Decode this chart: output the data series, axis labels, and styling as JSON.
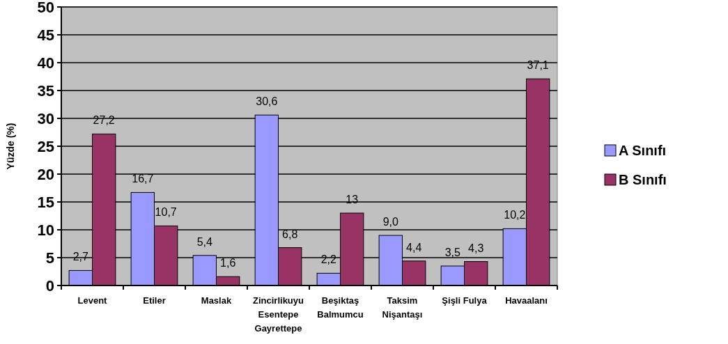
{
  "chart_data": {
    "type": "bar",
    "ylabel": "Yüzde (%)",
    "categories": [
      "Levent",
      "Etiler",
      "Maslak",
      "Zincirlikuyu\nEsentepe\nGayrettepe",
      "Beşiktaş\nBalmumcu",
      "Taksim\nNişantaşı",
      "Şişli Fulya",
      "Havaalanı"
    ],
    "series": [
      {
        "name": "A Sınıfı",
        "color": "#9999ff",
        "values": [
          2.7,
          16.7,
          5.4,
          30.6,
          2.2,
          9.0,
          3.5,
          10.2
        ],
        "value_labels": [
          "2,7",
          "16,7",
          "5,4",
          "30,6",
          "2,2",
          "9,0",
          "3,5",
          "10,2"
        ]
      },
      {
        "name": "B Sınıfı",
        "color": "#993366",
        "values": [
          27.2,
          10.7,
          1.6,
          6.8,
          13,
          4.4,
          4.3,
          37.1
        ],
        "value_labels": [
          "27,2",
          "10,7",
          "1,6",
          "6,8",
          "13",
          "4,4",
          "4,3",
          "37,1"
        ]
      }
    ],
    "ylim": [
      0,
      50
    ],
    "yticks": [
      0,
      5,
      10,
      15,
      20,
      25,
      30,
      35,
      40,
      45,
      50
    ],
    "grid": "y",
    "legend": "right"
  }
}
